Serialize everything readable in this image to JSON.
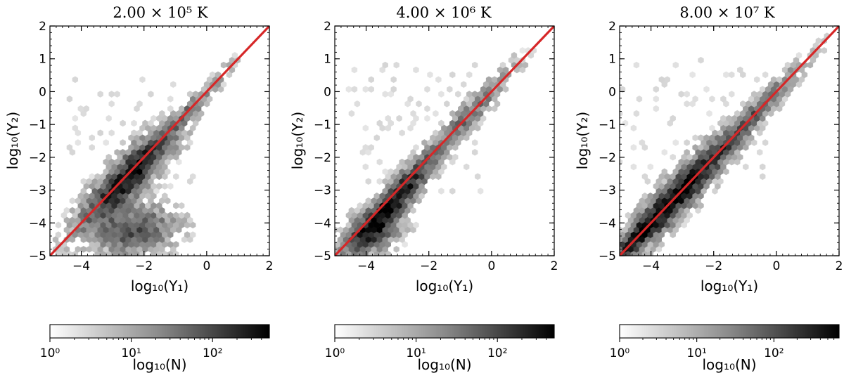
{
  "chart_data": [
    {
      "type": "heatmap",
      "subtype": "hexbin",
      "title": "2.00 × 10⁵ K",
      "xlabel": "log₁₀(Y₁)",
      "ylabel": "log₁₀(Y₂)",
      "xlim": [
        -5,
        2
      ],
      "ylim": [
        -5,
        2
      ],
      "xticks": [
        -4,
        -2,
        0,
        2
      ],
      "yticks": [
        -5,
        -4,
        -3,
        -2,
        -1,
        0,
        1,
        2
      ],
      "x_tick_labels": [
        "−4",
        "−2",
        "0",
        "2"
      ],
      "y_tick_labels": [
        "−5",
        "−4",
        "−3",
        "−2",
        "−1",
        "0",
        "1",
        "2"
      ],
      "reference_line": {
        "label": "y = x",
        "x": [
          -5,
          2
        ],
        "y": [
          -5,
          2
        ],
        "color": "#d62728"
      },
      "density_clusters": [
        {
          "cx": -2.5,
          "cy": -2.6,
          "sx": 0.85,
          "sy": 0.85,
          "rho": 0.86,
          "weight": 1.0
        },
        {
          "cx": -2.3,
          "cy": -4.2,
          "sx": 0.75,
          "sy": 0.45,
          "rho": 0.1,
          "weight": 0.55
        },
        {
          "cx": -0.6,
          "cy": -0.6,
          "sx": 0.8,
          "sy": 0.8,
          "rho": 0.97,
          "weight": 0.3
        }
      ],
      "scatter_fill": [
        -4.4,
        -0.2,
        -2.9,
        0.4
      ],
      "colorbar": {
        "label": "log₁₀(N)",
        "scale": "log",
        "min": 1,
        "max": 500,
        "ticks": [
          "10⁰",
          "10¹",
          "10²"
        ],
        "tick_values": [
          1,
          10,
          100
        ],
        "colormap": "Greys"
      }
    },
    {
      "type": "heatmap",
      "subtype": "hexbin",
      "title": "4.00 × 10⁶ K",
      "xlabel": "log₁₀(Y₁)",
      "ylabel": "log₁₀(Y₂)",
      "xlim": [
        -5,
        2
      ],
      "ylim": [
        -5,
        2
      ],
      "xticks": [
        -4,
        -2,
        0,
        2
      ],
      "yticks": [
        -5,
        -4,
        -3,
        -2,
        -1,
        0,
        1,
        2
      ],
      "x_tick_labels": [
        "−4",
        "−2",
        "0",
        "2"
      ],
      "y_tick_labels": [
        "−5",
        "−4",
        "−3",
        "−2",
        "−1",
        "0",
        "1",
        "2"
      ],
      "reference_line": {
        "label": "y = x",
        "x": [
          -5,
          2
        ],
        "y": [
          -5,
          2
        ],
        "color": "#d62728"
      },
      "density_clusters": [
        {
          "cx": -3.1,
          "cy": -3.3,
          "sx": 0.75,
          "sy": 0.8,
          "rho": 0.9,
          "weight": 1.0
        },
        {
          "cx": -3.8,
          "cy": -4.3,
          "sx": 0.55,
          "sy": 0.4,
          "rho": 0.4,
          "weight": 0.6
        },
        {
          "cx": -0.8,
          "cy": -0.8,
          "sx": 0.9,
          "sy": 0.9,
          "rho": 0.95,
          "weight": 0.35
        }
      ],
      "scatter_fill": [
        -4.7,
        -0.3,
        -3.1,
        0.9
      ],
      "colorbar": {
        "label": "log₁₀(N)",
        "scale": "log",
        "min": 1,
        "max": 500,
        "ticks": [
          "10⁰",
          "10¹",
          "10²"
        ],
        "tick_values": [
          1,
          10,
          100
        ],
        "colormap": "Greys"
      }
    },
    {
      "type": "heatmap",
      "subtype": "hexbin",
      "title": "8.00 × 10⁷ K",
      "xlabel": "log₁₀(Y₁)",
      "ylabel": "log₁₀(Y₂)",
      "xlim": [
        -5,
        2
      ],
      "ylim": [
        -5,
        2
      ],
      "xticks": [
        -4,
        -2,
        0,
        2
      ],
      "yticks": [
        -5,
        -4,
        -3,
        -2,
        -1,
        0,
        1,
        2
      ],
      "x_tick_labels": [
        "−4",
        "−2",
        "0",
        "2"
      ],
      "y_tick_labels": [
        "−5",
        "−4",
        "−3",
        "−2",
        "−1",
        "0",
        "1",
        "2"
      ],
      "reference_line": {
        "label": "y = x",
        "x": [
          -5,
          2
        ],
        "y": [
          -5,
          2
        ],
        "color": "#d62728"
      },
      "density_clusters": [
        {
          "cx": -3.2,
          "cy": -3.2,
          "sx": 1.1,
          "sy": 1.1,
          "rho": 0.93,
          "weight": 1.0
        },
        {
          "cx": -4.4,
          "cy": -4.4,
          "sx": 0.4,
          "sy": 0.4,
          "rho": 0.85,
          "weight": 0.75
        },
        {
          "cx": -0.8,
          "cy": -0.8,
          "sx": 1.0,
          "sy": 1.0,
          "rho": 0.97,
          "weight": 0.45
        }
      ],
      "scatter_fill": [
        -5.0,
        -0.2,
        -2.8,
        1.1
      ],
      "colorbar": {
        "label": "log₁₀(N)",
        "scale": "log",
        "min": 1,
        "max": 700,
        "ticks": [
          "10⁰",
          "10¹",
          "10²"
        ],
        "tick_values": [
          1,
          10,
          100
        ],
        "colormap": "Greys"
      }
    }
  ]
}
